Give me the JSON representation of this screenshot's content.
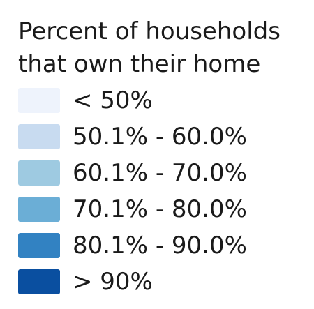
{
  "legend": {
    "title_line1": "Percent of households",
    "title_line2": "that own their home",
    "items": [
      {
        "label": "< 50%",
        "color": "#eef3fc"
      },
      {
        "label": "50.1% - 60.0%",
        "color": "#c8dbf0"
      },
      {
        "label": "60.1% - 70.0%",
        "color": "#9ecae1"
      },
      {
        "label": "70.1% - 80.0%",
        "color": "#6baed6"
      },
      {
        "label": "80.1% - 90.0%",
        "color": "#3282c2"
      },
      {
        "label": "> 90%",
        "color": "#0a4fa0"
      }
    ]
  }
}
